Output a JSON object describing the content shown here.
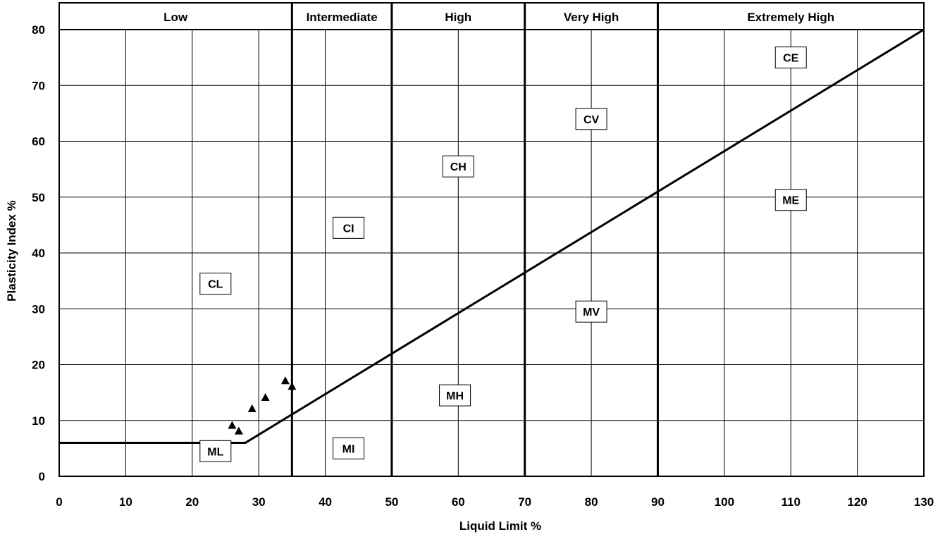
{
  "chart_data": {
    "type": "scatter",
    "title": "",
    "xlabel": "Liquid Limit %",
    "ylabel": "Plasticity Index %",
    "xlim": [
      0,
      130
    ],
    "ylim": [
      0,
      80
    ],
    "x_ticks": [
      0,
      10,
      20,
      30,
      40,
      50,
      60,
      70,
      80,
      90,
      100,
      110,
      120,
      130
    ],
    "y_ticks": [
      0,
      10,
      20,
      30,
      40,
      50,
      60,
      70,
      80
    ],
    "grid": true,
    "zones": [
      {
        "label": "Low",
        "from": 0,
        "to": 35
      },
      {
        "label": "Intermediate",
        "from": 35,
        "to": 50
      },
      {
        "label": "High",
        "from": 50,
        "to": 70
      },
      {
        "label": "Very High",
        "from": 70,
        "to": 90
      },
      {
        "label": "Extremely High",
        "from": 90,
        "to": 130
      }
    ],
    "a_line": {
      "points": [
        [
          0,
          6
        ],
        [
          28,
          6
        ],
        [
          130,
          80
        ]
      ]
    },
    "regions": [
      {
        "label": "CE",
        "x": 110,
        "y": 75
      },
      {
        "label": "CV",
        "x": 80,
        "y": 64
      },
      {
        "label": "CH",
        "x": 60,
        "y": 55.5
      },
      {
        "label": "ME",
        "x": 110,
        "y": 49.5
      },
      {
        "label": "CI",
        "x": 43.5,
        "y": 44.5
      },
      {
        "label": "CL",
        "x": 23.5,
        "y": 34.5
      },
      {
        "label": "MV",
        "x": 80,
        "y": 29.5
      },
      {
        "label": "MH",
        "x": 59.5,
        "y": 14.5
      },
      {
        "label": "ML",
        "x": 23.5,
        "y": 4.5
      },
      {
        "label": "MI",
        "x": 43.5,
        "y": 5
      }
    ],
    "series": [
      {
        "marker": "triangle",
        "points": [
          [
            26,
            9
          ],
          [
            27,
            8
          ],
          [
            29,
            12
          ],
          [
            31,
            14
          ],
          [
            34,
            17
          ],
          [
            35,
            16
          ]
        ]
      }
    ]
  }
}
